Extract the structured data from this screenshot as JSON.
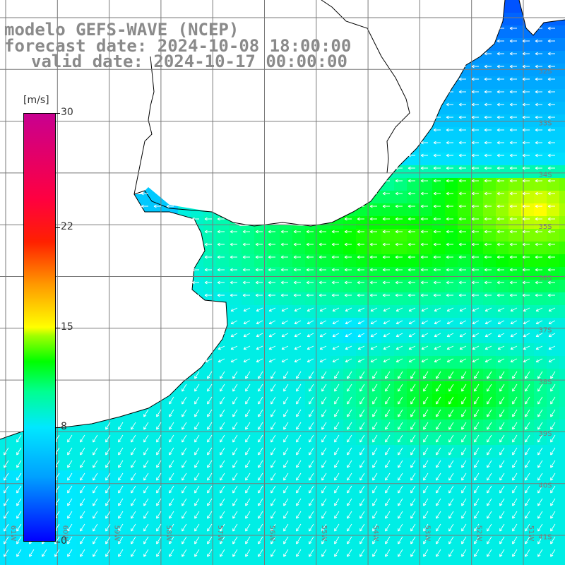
{
  "header": {
    "line1": "modelo GEFS-WAVE (NCEP)",
    "line2": "forecast date: 2024-10-08 18:00:00",
    "line3": "valid date: 2024-10-17 00:00:00"
  },
  "colorbar": {
    "unit": "[m/s]",
    "ticks": [
      {
        "label": "30",
        "value": 30
      },
      {
        "label": "22",
        "value": 22
      },
      {
        "label": "15",
        "value": 15
      },
      {
        "label": "8",
        "value": 8
      },
      {
        "label": "0",
        "value": 0
      }
    ],
    "colors": [
      "#0000ff",
      "#00a0ff",
      "#00e8ff",
      "#00ff90",
      "#00ff00",
      "#a0ff00",
      "#ffff00",
      "#ff9900",
      "#ff2000",
      "#c80090"
    ]
  },
  "map": {
    "lat_labels": [
      "32S",
      "33S",
      "34S",
      "35S",
      "36S",
      "37S",
      "38S",
      "39S",
      "40S",
      "41S"
    ],
    "lon_labels": [
      "61W",
      "60W",
      "59W",
      "58W",
      "57W",
      "56W",
      "55W",
      "54W",
      "53W",
      "52W",
      "51W"
    ],
    "colors": {
      "land": "#ffffff",
      "coast": "#000000",
      "grid": "#7a7a7a",
      "arrows": "#ffffff"
    }
  }
}
